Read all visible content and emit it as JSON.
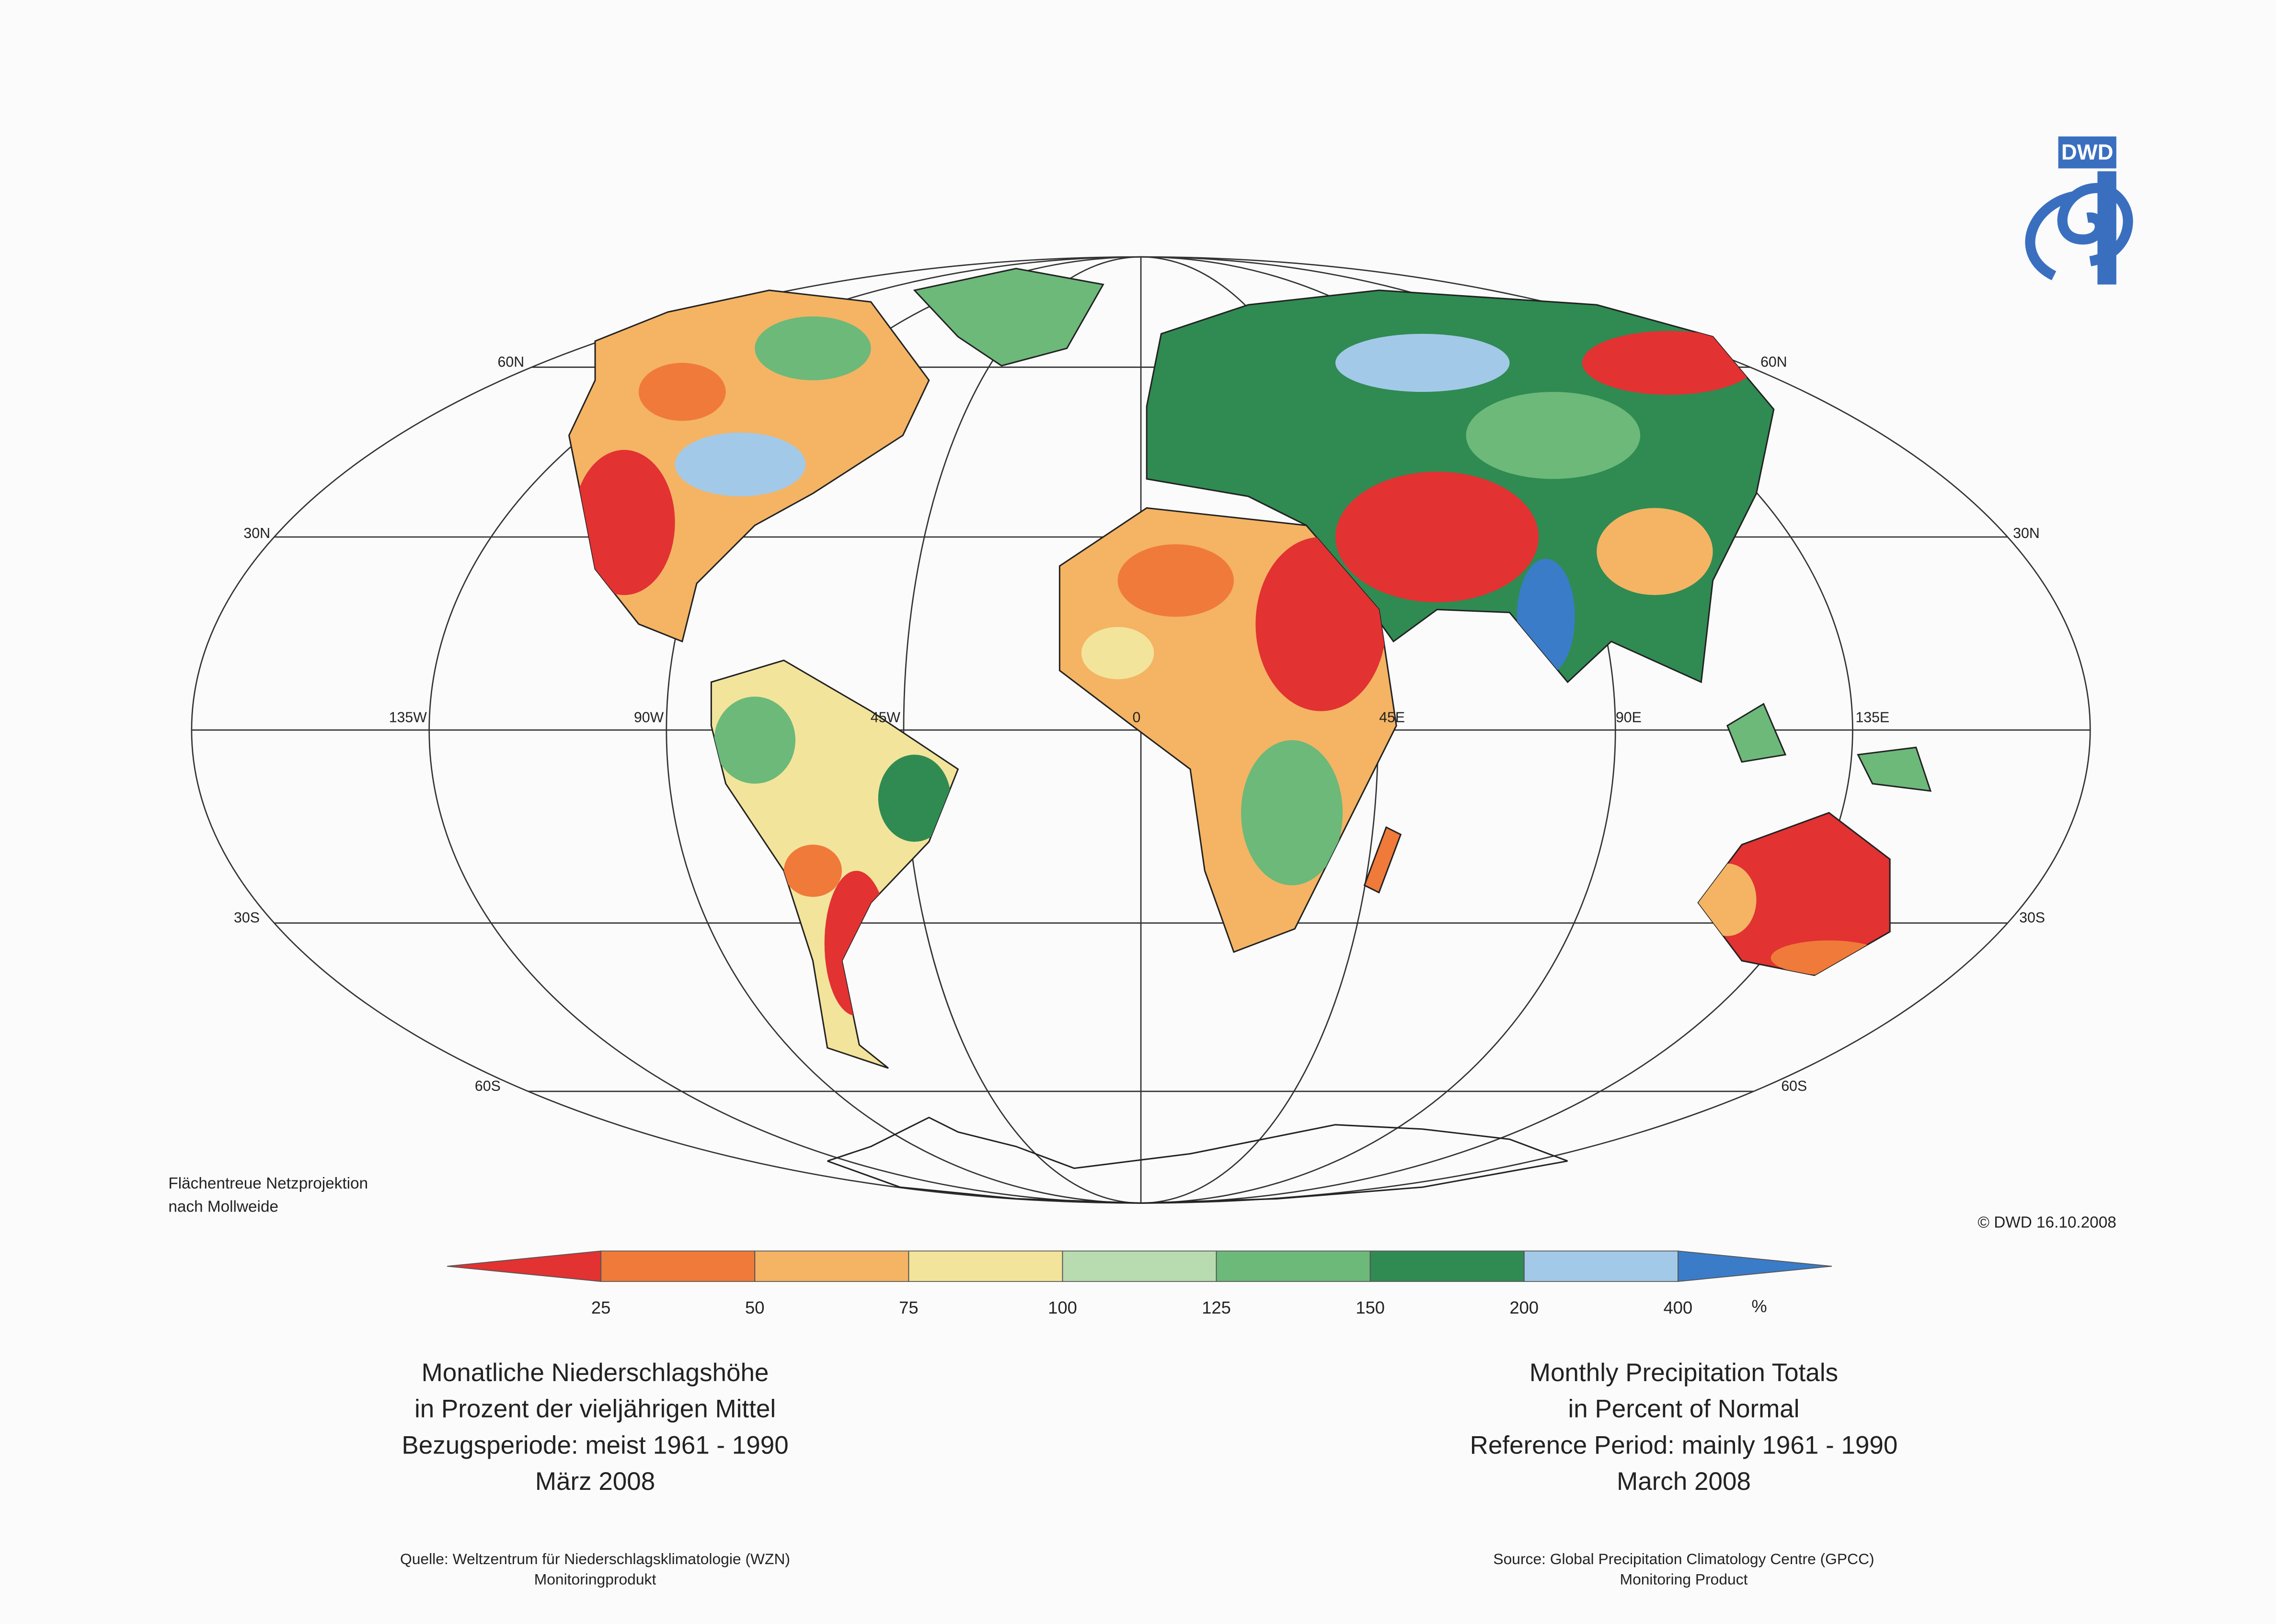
{
  "logo": {
    "text": "DWD"
  },
  "map": {
    "latitude_labels_left": [
      "60N",
      "30N",
      "30S",
      "60S"
    ],
    "latitude_labels_right": [
      "60N",
      "30N",
      "30S",
      "60S"
    ],
    "longitude_labels": [
      "135W",
      "90W",
      "45W",
      "0",
      "45E",
      "90E",
      "135E"
    ],
    "projection_note": [
      "Flächentreue Netzprojektion",
      "nach Mollweide"
    ],
    "copyright": "© DWD 16.10.2008"
  },
  "legend": {
    "ticks": [
      25,
      50,
      75,
      100,
      125,
      150,
      200,
      400
    ],
    "unit": "%",
    "colors": [
      "#e23232",
      "#f07a3a",
      "#f4b464",
      "#f3e49c",
      "#b9dbb0",
      "#6cb97a",
      "#2f8b52",
      "#a3c9e8",
      "#3a7cc8"
    ]
  },
  "title_de": [
    "Monatliche Niederschlagshöhe",
    "in Prozent der vieljährigen Mittel",
    "Bezugsperiode: meist 1961 - 1990",
    "März 2008"
  ],
  "title_en": [
    "Monthly Precipitation Totals",
    "in Percent of Normal",
    "Reference Period: mainly 1961 - 1990",
    "March 2008"
  ],
  "source_de": [
    "Quelle: Weltzentrum für Niederschlagsklimatologie (WZN)",
    "Monitoringprodukt"
  ],
  "source_en": [
    "Source: Global Precipitation Climatology Centre (GPCC)",
    "Monitoring Product"
  ]
}
